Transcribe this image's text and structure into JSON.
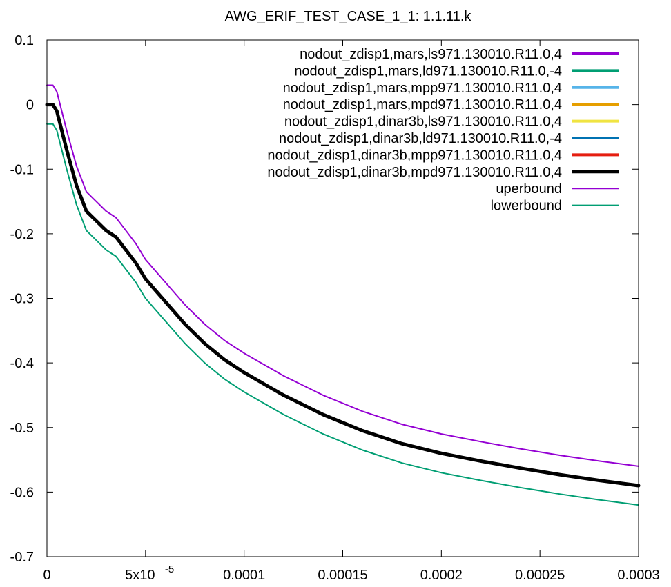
{
  "chart_data": {
    "type": "line",
    "title": "AWG_ERIF_TEST_CASE_1_1: 1.1.11.k",
    "xlabel": "",
    "ylabel": "",
    "xlim": [
      0,
      0.0003
    ],
    "ylim": [
      -0.7,
      0.1
    ],
    "grid": false,
    "legend_position": "top-right",
    "x_ticks": [
      {
        "value": 0,
        "label": "0"
      },
      {
        "value": 5e-05,
        "label": "5x10",
        "sup": "-5"
      },
      {
        "value": 0.0001,
        "label": "0.0001"
      },
      {
        "value": 0.00015,
        "label": "0.00015"
      },
      {
        "value": 0.0002,
        "label": "0.0002"
      },
      {
        "value": 0.00025,
        "label": "0.00025"
      },
      {
        "value": 0.0003,
        "label": "0.0003"
      }
    ],
    "y_ticks": [
      {
        "value": 0.1,
        "label": "0.1"
      },
      {
        "value": 0,
        "label": "0"
      },
      {
        "value": -0.1,
        "label": "-0.1"
      },
      {
        "value": -0.2,
        "label": "-0.2"
      },
      {
        "value": -0.3,
        "label": "-0.3"
      },
      {
        "value": -0.4,
        "label": "-0.4"
      },
      {
        "value": -0.5,
        "label": "-0.5"
      },
      {
        "value": -0.6,
        "label": "-0.6"
      },
      {
        "value": -0.7,
        "label": "-0.7"
      }
    ],
    "x": [
      0,
      3e-06,
      5e-06,
      1e-05,
      1.5e-05,
      2e-05,
      2.5e-05,
      3e-05,
      3.5e-05,
      4e-05,
      4.5e-05,
      5e-05,
      6e-05,
      7e-05,
      8e-05,
      9e-05,
      0.0001,
      0.00012,
      0.00014,
      0.00016,
      0.00018,
      0.0002,
      0.00022,
      0.00024,
      0.00026,
      0.00028,
      0.0003
    ],
    "series": [
      {
        "name": "nodout_zdisp1,mars,ls971.130010.R11.0,4",
        "color": "#9400d3",
        "width": 4,
        "values": [
          0,
          0,
          -0.01,
          -0.07,
          -0.125,
          -0.165,
          -0.18,
          -0.195,
          -0.205,
          -0.225,
          -0.245,
          -0.27,
          -0.305,
          -0.34,
          -0.37,
          -0.395,
          -0.415,
          -0.45,
          -0.48,
          -0.505,
          -0.525,
          -0.54,
          -0.552,
          -0.563,
          -0.573,
          -0.582,
          -0.59
        ]
      },
      {
        "name": "nodout_zdisp1,mars,ld971.130010.R11.0,-4",
        "color": "#009e73",
        "width": 4,
        "values": [
          0,
          0,
          -0.01,
          -0.07,
          -0.125,
          -0.165,
          -0.18,
          -0.195,
          -0.205,
          -0.225,
          -0.245,
          -0.27,
          -0.305,
          -0.34,
          -0.37,
          -0.395,
          -0.415,
          -0.45,
          -0.48,
          -0.505,
          -0.525,
          -0.54,
          -0.552,
          -0.563,
          -0.573,
          -0.582,
          -0.59
        ]
      },
      {
        "name": "nodout_zdisp1,mars,mpp971.130010.R11.0,4",
        "color": "#56b4e9",
        "width": 4,
        "values": [
          0,
          0,
          -0.01,
          -0.07,
          -0.125,
          -0.165,
          -0.18,
          -0.195,
          -0.205,
          -0.225,
          -0.245,
          -0.27,
          -0.305,
          -0.34,
          -0.37,
          -0.395,
          -0.415,
          -0.45,
          -0.48,
          -0.505,
          -0.525,
          -0.54,
          -0.552,
          -0.563,
          -0.573,
          -0.582,
          -0.59
        ]
      },
      {
        "name": "nodout_zdisp1,mars,mpd971.130010.R11.0,4",
        "color": "#e69f00",
        "width": 4,
        "values": [
          0,
          0,
          -0.01,
          -0.07,
          -0.125,
          -0.165,
          -0.18,
          -0.195,
          -0.205,
          -0.225,
          -0.245,
          -0.27,
          -0.305,
          -0.34,
          -0.37,
          -0.395,
          -0.415,
          -0.45,
          -0.48,
          -0.505,
          -0.525,
          -0.54,
          -0.552,
          -0.563,
          -0.573,
          -0.582,
          -0.59
        ]
      },
      {
        "name": "nodout_zdisp1,dinar3b,ls971.130010.R11.0,4",
        "color": "#f0e442",
        "width": 4,
        "values": [
          0,
          0,
          -0.01,
          -0.07,
          -0.125,
          -0.165,
          -0.18,
          -0.195,
          -0.205,
          -0.225,
          -0.245,
          -0.27,
          -0.305,
          -0.34,
          -0.37,
          -0.395,
          -0.415,
          -0.45,
          -0.48,
          -0.505,
          -0.525,
          -0.54,
          -0.552,
          -0.563,
          -0.573,
          -0.582,
          -0.59
        ]
      },
      {
        "name": "nodout_zdisp1,dinar3b,ld971.130010.R11.0,-4",
        "color": "#0072b2",
        "width": 4,
        "values": [
          0,
          0,
          -0.01,
          -0.07,
          -0.125,
          -0.165,
          -0.18,
          -0.195,
          -0.205,
          -0.225,
          -0.245,
          -0.27,
          -0.305,
          -0.34,
          -0.37,
          -0.395,
          -0.415,
          -0.45,
          -0.48,
          -0.505,
          -0.525,
          -0.54,
          -0.552,
          -0.563,
          -0.573,
          -0.582,
          -0.59
        ]
      },
      {
        "name": "nodout_zdisp1,dinar3b,mpp971.130010.R11.0,4",
        "color": "#e51e10",
        "width": 4,
        "values": [
          0,
          0,
          -0.01,
          -0.07,
          -0.125,
          -0.165,
          -0.18,
          -0.195,
          -0.205,
          -0.225,
          -0.245,
          -0.27,
          -0.305,
          -0.34,
          -0.37,
          -0.395,
          -0.415,
          -0.45,
          -0.48,
          -0.505,
          -0.525,
          -0.54,
          -0.552,
          -0.563,
          -0.573,
          -0.582,
          -0.59
        ]
      },
      {
        "name": "nodout_zdisp1,dinar3b,mpd971.130010.R11.0,4",
        "color": "#000000",
        "width": 5,
        "values": [
          0,
          0,
          -0.01,
          -0.07,
          -0.125,
          -0.165,
          -0.18,
          -0.195,
          -0.205,
          -0.225,
          -0.245,
          -0.27,
          -0.305,
          -0.34,
          -0.37,
          -0.395,
          -0.415,
          -0.45,
          -0.48,
          -0.505,
          -0.525,
          -0.54,
          -0.552,
          -0.563,
          -0.573,
          -0.582,
          -0.59
        ]
      },
      {
        "name": "uperbound",
        "color": "#9400d3",
        "width": 2,
        "values": [
          0.03,
          0.03,
          0.02,
          -0.04,
          -0.095,
          -0.135,
          -0.15,
          -0.165,
          -0.175,
          -0.195,
          -0.215,
          -0.24,
          -0.275,
          -0.31,
          -0.34,
          -0.365,
          -0.385,
          -0.42,
          -0.45,
          -0.475,
          -0.495,
          -0.51,
          -0.522,
          -0.533,
          -0.543,
          -0.552,
          -0.56
        ]
      },
      {
        "name": "lowerbound",
        "color": "#009e73",
        "width": 2,
        "values": [
          -0.03,
          -0.03,
          -0.04,
          -0.1,
          -0.155,
          -0.195,
          -0.21,
          -0.225,
          -0.235,
          -0.255,
          -0.275,
          -0.3,
          -0.335,
          -0.37,
          -0.4,
          -0.425,
          -0.445,
          -0.48,
          -0.51,
          -0.535,
          -0.555,
          -0.57,
          -0.582,
          -0.593,
          -0.603,
          -0.612,
          -0.62
        ]
      }
    ]
  }
}
